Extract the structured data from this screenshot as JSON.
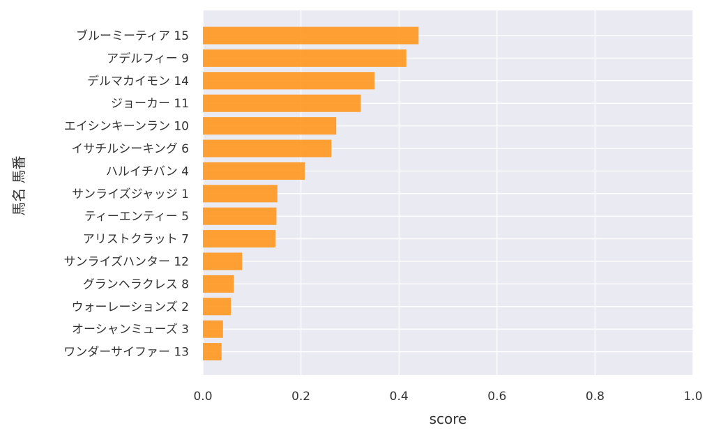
{
  "chart_data": {
    "type": "bar",
    "orientation": "horizontal",
    "categories": [
      "ブルーミーティア 15",
      "アデルフィー 9",
      "デルマカイモン 14",
      "ジョーカー 11",
      "エイシンキーンラン 10",
      "イサチルシーキング 6",
      "ハルイチバン 4",
      "サンライズジャッジ 1",
      "ティーエンティー 5",
      "アリストクラット 7",
      "サンライズハンター 12",
      "グランヘラクレス 8",
      "ウォーレーションズ 2",
      "オーシャンミューズ 3",
      "ワンダーサイファー 13"
    ],
    "values": [
      0.44,
      0.415,
      0.35,
      0.322,
      0.272,
      0.262,
      0.208,
      0.152,
      0.15,
      0.148,
      0.08,
      0.063,
      0.057,
      0.041,
      0.038
    ],
    "xlabel": "score",
    "ylabel": "馬名 馬番",
    "xlim": [
      0,
      1.0
    ],
    "xticks": [
      "0.0",
      "0.2",
      "0.4",
      "0.6",
      "0.8",
      "1.0"
    ],
    "grid": true,
    "colors": {
      "bar": "#FF9418",
      "background": "#EAEAF2",
      "grid": "#FFFFFF"
    }
  }
}
